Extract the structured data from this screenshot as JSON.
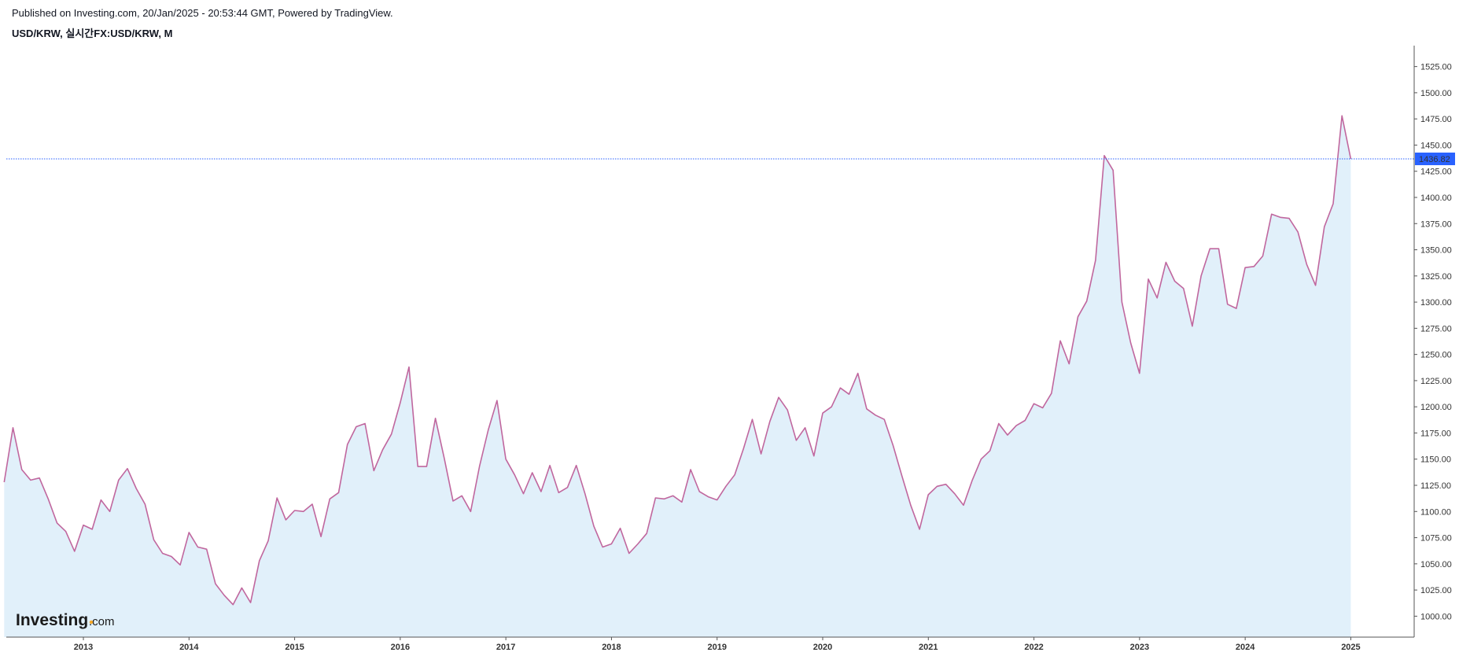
{
  "header": {
    "published": "Published on Investing.com, 20/Jan/2025 - 20:53:44 GMT, Powered by TradingView.",
    "symbol": "USD/KRW, 실시간FX:USD/KRW, M"
  },
  "logo": {
    "main": "Investing",
    "suffix": ".com",
    "accent_color": "#f5a623"
  },
  "chart_data": {
    "type": "area",
    "title": "",
    "xlabel": "",
    "ylabel": "",
    "y_axis_position": "right",
    "ylim": [
      980,
      1545
    ],
    "xlim": [
      2012.27,
      2025.6
    ],
    "y_ticks": [
      "1000.00",
      "1025.00",
      "1050.00",
      "1075.00",
      "1100.00",
      "1125.00",
      "1150.00",
      "1175.00",
      "1200.00",
      "1225.00",
      "1250.00",
      "1275.00",
      "1300.00",
      "1325.00",
      "1350.00",
      "1375.00",
      "1400.00",
      "1425.00",
      "1450.00",
      "1475.00",
      "1500.00",
      "1525.00"
    ],
    "x_ticks": [
      {
        "label": "2013",
        "x": 2013.0
      },
      {
        "label": "2014",
        "x": 2014.0
      },
      {
        "label": "2015",
        "x": 2015.0
      },
      {
        "label": "2016",
        "x": 2016.0
      },
      {
        "label": "2017",
        "x": 2017.0
      },
      {
        "label": "2018",
        "x": 2018.0
      },
      {
        "label": "2019",
        "x": 2019.0
      },
      {
        "label": "2020",
        "x": 2020.0
      },
      {
        "label": "2021",
        "x": 2021.0
      },
      {
        "label": "2022",
        "x": 2022.0
      },
      {
        "label": "2023",
        "x": 2023.0
      },
      {
        "label": "2024",
        "x": 2024.0
      },
      {
        "label": "2025",
        "x": 2025.0
      }
    ],
    "last_price": {
      "value": 1436.82,
      "label": "1436.82"
    },
    "line_color": "#c0679e",
    "fill_color": "#e1f0fa",
    "price_line_color": "#2962ff",
    "series": [
      {
        "x_start": 2012.25,
        "x_step": 0.08333,
        "values": [
          1128,
          1180,
          1140,
          1130,
          1132,
          1112,
          1089,
          1081,
          1062,
          1087,
          1083,
          1111,
          1100,
          1130,
          1141,
          1122,
          1107,
          1073,
          1060,
          1057,
          1049,
          1080,
          1066,
          1064,
          1031,
          1020,
          1011,
          1027,
          1013,
          1053,
          1072,
          1113,
          1092,
          1101,
          1100,
          1107,
          1076,
          1112,
          1118,
          1164,
          1181,
          1184,
          1139,
          1159,
          1174,
          1204,
          1238,
          1143,
          1143,
          1189,
          1151,
          1110,
          1115,
          1100,
          1143,
          1178,
          1206,
          1150,
          1135,
          1117,
          1137,
          1119,
          1144,
          1118,
          1123,
          1144,
          1117,
          1086,
          1066,
          1069,
          1084,
          1060,
          1069,
          1079,
          1113,
          1112,
          1115,
          1109,
          1140,
          1119,
          1114,
          1111,
          1124,
          1135,
          1160,
          1188,
          1155,
          1186,
          1209,
          1197,
          1168,
          1180,
          1153,
          1194,
          1200,
          1218,
          1212,
          1232,
          1198,
          1192,
          1188,
          1163,
          1134,
          1106,
          1083,
          1116,
          1124,
          1126,
          1117,
          1106,
          1130,
          1150,
          1158,
          1184,
          1173,
          1182,
          1187,
          1203,
          1199,
          1213,
          1263,
          1241,
          1286,
          1301,
          1340,
          1440,
          1426,
          1300,
          1261,
          1232,
          1322,
          1304,
          1338,
          1320,
          1313,
          1277,
          1325,
          1351,
          1351,
          1298,
          1294,
          1333,
          1334,
          1344,
          1384,
          1381,
          1380,
          1367,
          1336,
          1316,
          1372,
          1394,
          1478,
          1436.82
        ]
      }
    ]
  }
}
